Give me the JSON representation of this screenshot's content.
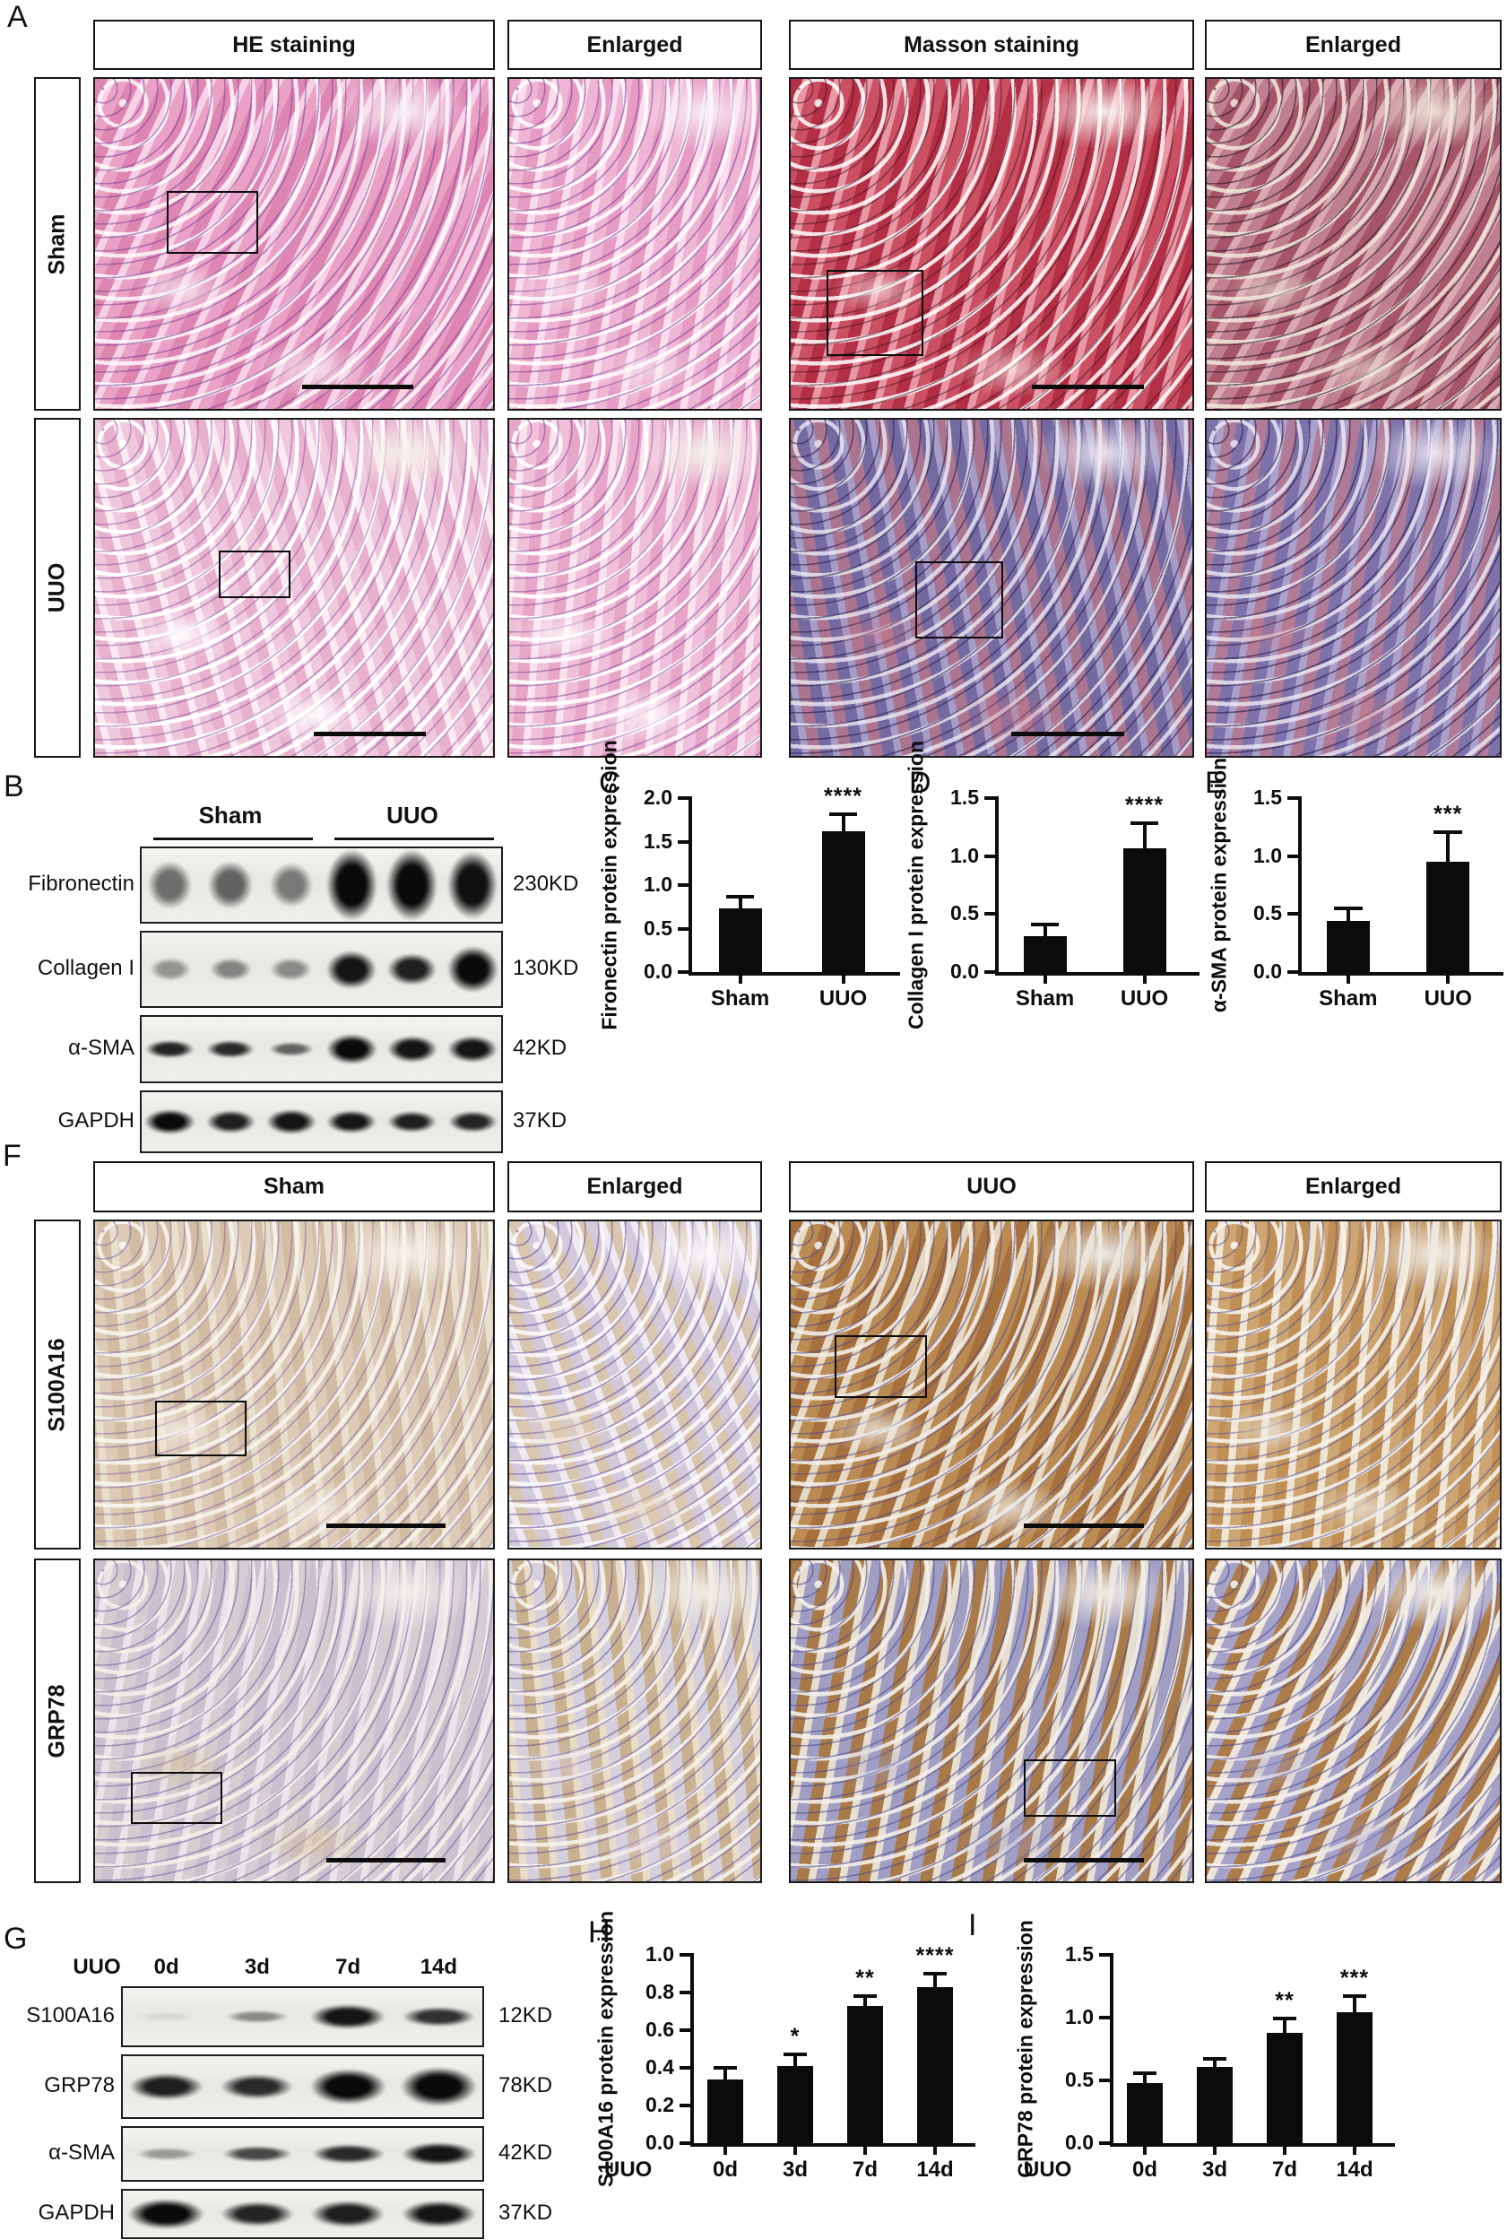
{
  "figure": {
    "background": "#ffffff",
    "ink": "#111111"
  },
  "panel_labels": {
    "A": "A",
    "B": "B",
    "C": "C",
    "D": "D",
    "E": "E",
    "F": "F",
    "G": "G",
    "H": "H",
    "I": "I"
  },
  "panels": {
    "A": {
      "col_headers": [
        "HE staining",
        "Enlarged",
        "Masson staining",
        "Enlarged"
      ],
      "row_labels": [
        "Sham",
        "UUO"
      ],
      "images": [
        {
          "name": "he-sham",
          "texture": "tex-he-sham",
          "roi": {
            "l": 18,
            "t": 34,
            "w": 23,
            "h": 19
          },
          "scalebar": {
            "l": 52,
            "w": 28
          }
        },
        {
          "name": "he-sham-enlarged",
          "texture": "tex-he-sham-enl"
        },
        {
          "name": "masson-sham",
          "texture": "tex-masson-sham",
          "roi": {
            "l": 9,
            "t": 58,
            "w": 24,
            "h": 26
          },
          "scalebar": {
            "l": 60,
            "w": 28
          }
        },
        {
          "name": "masson-sham-enlarged",
          "texture": "tex-masson-sham-enl"
        },
        {
          "name": "he-uuo",
          "texture": "tex-he-uuo",
          "roi": {
            "l": 31,
            "t": 39,
            "w": 18,
            "h": 14
          },
          "scalebar": {
            "l": 55,
            "w": 28
          }
        },
        {
          "name": "he-uuo-enlarged",
          "texture": "tex-he-uuo-enl"
        },
        {
          "name": "masson-uuo",
          "texture": "tex-masson-uuo",
          "roi": {
            "l": 31,
            "t": 42,
            "w": 22,
            "h": 23
          },
          "scalebar": {
            "l": 55,
            "w": 28
          }
        },
        {
          "name": "masson-uuo-enlarged",
          "texture": "tex-masson-uuo-enl"
        }
      ]
    },
    "B": {
      "group_labels": [
        "Sham",
        "UUO"
      ],
      "rows": [
        {
          "protein": "Fibronectin",
          "mw": "230KD",
          "bands": [
            {
              "i": 0.55,
              "h": 0.62
            },
            {
              "i": 0.6,
              "h": 0.62
            },
            {
              "i": 0.5,
              "h": 0.58
            },
            {
              "i": 1,
              "h": 0.92
            },
            {
              "i": 1,
              "h": 0.92
            },
            {
              "i": 0.97,
              "h": 0.88
            }
          ]
        },
        {
          "protein": "Collagen I",
          "mw": "130KD",
          "bands": [
            {
              "i": 0.38,
              "h": 0.3
            },
            {
              "i": 0.45,
              "h": 0.3
            },
            {
              "i": 0.42,
              "h": 0.3
            },
            {
              "i": 0.95,
              "h": 0.5
            },
            {
              "i": 0.9,
              "h": 0.42
            },
            {
              "i": 1,
              "h": 0.6
            }
          ]
        },
        {
          "protein": "α-SMA",
          "mw": "42KD",
          "bands": [
            {
              "i": 0.88,
              "h": 0.26
            },
            {
              "i": 0.85,
              "h": 0.26
            },
            {
              "i": 0.6,
              "h": 0.2
            },
            {
              "i": 1,
              "h": 0.45
            },
            {
              "i": 0.95,
              "h": 0.4
            },
            {
              "i": 0.95,
              "h": 0.4
            }
          ]
        },
        {
          "protein": "GAPDH",
          "mw": "37KD",
          "bands": [
            {
              "i": 1,
              "h": 0.4
            },
            {
              "i": 0.9,
              "h": 0.36
            },
            {
              "i": 0.95,
              "h": 0.4
            },
            {
              "i": 0.95,
              "h": 0.36
            },
            {
              "i": 0.9,
              "h": 0.34
            },
            {
              "i": 0.88,
              "h": 0.34
            }
          ]
        }
      ]
    },
    "F": {
      "col_headers": [
        "Sham",
        "Enlarged",
        "UUO",
        "Enlarged"
      ],
      "row_labels": [
        "S100A16",
        "GRP78"
      ],
      "images": [
        {
          "name": "s100a16-sham",
          "texture": "tex-s100-sham",
          "roi": {
            "l": 15,
            "t": 55,
            "w": 23,
            "h": 17
          },
          "scalebar": {
            "l": 58,
            "w": 30
          }
        },
        {
          "name": "s100a16-sham-enlarged",
          "texture": "tex-s100-sham-enl"
        },
        {
          "name": "s100a16-uuo",
          "texture": "tex-s100-uuo",
          "roi": {
            "l": 11,
            "t": 35,
            "w": 23,
            "h": 19
          },
          "scalebar": {
            "l": 58,
            "w": 30
          }
        },
        {
          "name": "s100a16-uuo-enlarged",
          "texture": "tex-s100-uuo-enl"
        },
        {
          "name": "grp78-sham",
          "texture": "tex-grp78-sham",
          "roi": {
            "l": 9,
            "t": 66,
            "w": 23,
            "h": 16
          },
          "scalebar": {
            "l": 58,
            "w": 30
          }
        },
        {
          "name": "grp78-sham-enlarged",
          "texture": "tex-grp78-sham-enl"
        },
        {
          "name": "grp78-uuo",
          "texture": "tex-grp78-uuo",
          "roi": {
            "l": 58,
            "t": 62,
            "w": 23,
            "h": 18
          },
          "scalebar": {
            "l": 58,
            "w": 30
          }
        },
        {
          "name": "grp78-uuo-enlarged",
          "texture": "tex-grp78-uuo-enl"
        }
      ]
    },
    "G": {
      "lane_prefix": "UUO",
      "lane_labels": [
        "0d",
        "3d",
        "7d",
        "14d"
      ],
      "rows": [
        {
          "protein": "S100A16",
          "mw": "12KD",
          "bands": [
            {
              "i": 0.07,
              "h": 0.14
            },
            {
              "i": 0.42,
              "h": 0.2
            },
            {
              "i": 0.95,
              "h": 0.4
            },
            {
              "i": 0.82,
              "h": 0.32
            }
          ]
        },
        {
          "protein": "GRP78",
          "mw": "78KD",
          "bands": [
            {
              "i": 0.9,
              "h": 0.42
            },
            {
              "i": 0.85,
              "h": 0.4
            },
            {
              "i": 1,
              "h": 0.55
            },
            {
              "i": 1,
              "h": 0.6
            }
          ]
        },
        {
          "protein": "α-SMA",
          "mw": "42KD",
          "bands": [
            {
              "i": 0.35,
              "h": 0.22
            },
            {
              "i": 0.72,
              "h": 0.3
            },
            {
              "i": 0.85,
              "h": 0.34
            },
            {
              "i": 0.95,
              "h": 0.42
            }
          ]
        },
        {
          "protein": "GAPDH",
          "mw": "37KD",
          "bands": [
            {
              "i": 1,
              "h": 0.62
            },
            {
              "i": 0.88,
              "h": 0.5
            },
            {
              "i": 0.9,
              "h": 0.52
            },
            {
              "i": 0.95,
              "h": 0.55
            }
          ]
        }
      ]
    }
  },
  "chart_data": [
    {
      "id": "C",
      "type": "bar",
      "ylabel": "Fironectin protein expression",
      "categories": [
        "Sham",
        "UUO"
      ],
      "values": [
        0.73,
        1.62
      ],
      "errors": [
        0.14,
        0.19
      ],
      "sig": [
        "",
        "****"
      ],
      "ylim": [
        0,
        2.0
      ],
      "yticks": [
        0,
        0.5,
        1,
        1.5,
        2
      ],
      "grid": false,
      "legend": "none"
    },
    {
      "id": "D",
      "type": "bar",
      "ylabel": "Collagen I protein expression",
      "categories": [
        "Sham",
        "UUO"
      ],
      "values": [
        0.31,
        1.07
      ],
      "errors": [
        0.1,
        0.21
      ],
      "sig": [
        "",
        "****"
      ],
      "ylim": [
        0,
        1.5
      ],
      "yticks": [
        0,
        0.5,
        1,
        1.5
      ],
      "grid": false,
      "legend": "none"
    },
    {
      "id": "E",
      "type": "bar",
      "ylabel": "α-SMA protein expression",
      "categories": [
        "Sham",
        "UUO"
      ],
      "values": [
        0.44,
        0.95
      ],
      "errors": [
        0.11,
        0.26
      ],
      "sig": [
        "",
        "***"
      ],
      "ylim": [
        0,
        1.5
      ],
      "yticks": [
        0,
        0.5,
        1,
        1.5
      ],
      "grid": false,
      "legend": "none"
    },
    {
      "id": "H",
      "type": "bar",
      "ylabel": "S100A16 protein expression",
      "x_prefix": "UUO",
      "categories": [
        "0d",
        "3d",
        "7d",
        "14d"
      ],
      "values": [
        0.34,
        0.41,
        0.73,
        0.83
      ],
      "errors": [
        0.06,
        0.06,
        0.05,
        0.07
      ],
      "sig": [
        "",
        "*",
        "**",
        "****"
      ],
      "ylim": [
        0,
        1.0
      ],
      "yticks": [
        0,
        0.2,
        0.4,
        0.6,
        0.8,
        1.0
      ],
      "grid": false,
      "legend": "none"
    },
    {
      "id": "I",
      "type": "bar",
      "ylabel": "GRP78 protein expression",
      "x_prefix": "UUO",
      "categories": [
        "0d",
        "3d",
        "7d",
        "14d"
      ],
      "values": [
        0.48,
        0.61,
        0.88,
        1.04
      ],
      "errors": [
        0.08,
        0.06,
        0.11,
        0.13
      ],
      "sig": [
        "",
        "",
        "**",
        "***"
      ],
      "ylim": [
        0,
        1.5
      ],
      "yticks": [
        0,
        0.5,
        1,
        1.5
      ],
      "grid": false,
      "legend": "none"
    }
  ]
}
